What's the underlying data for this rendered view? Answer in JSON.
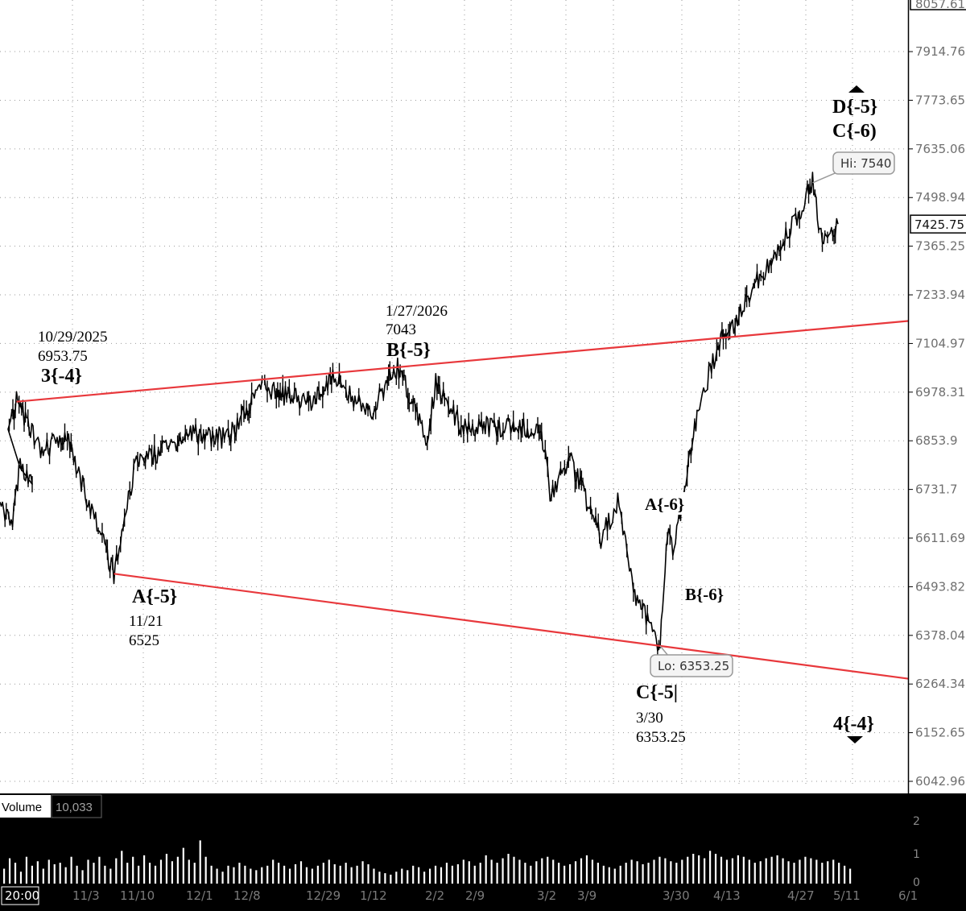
{
  "chart_data": {
    "type": "line",
    "title": "",
    "xlabel": "",
    "ylabel": "",
    "colors": {
      "price": "#000000",
      "trendline": "#e8383c",
      "grid": "#9a9a9a",
      "volume_bg": "#000000",
      "volume_bar": "#ffffff"
    },
    "price_axis": {
      "ticks": [
        "8057.61",
        "7914.76",
        "7773.65",
        "7635.06",
        "7498.94",
        "7365.25",
        "7233.94",
        "7104.97",
        "6978.31",
        "6853.9",
        "6731.7",
        "6611.69",
        "6493.82",
        "6378.04",
        "6264.34",
        "6152.65",
        "6042.96"
      ],
      "ylim": [
        6042.96,
        8057.61
      ],
      "scale": "log",
      "last_price": "7425.75"
    },
    "time_axis": {
      "ticks": [
        "20:00",
        "11/3",
        "11/10",
        "12/1",
        "12/8",
        "12/29",
        "1/12",
        "2/2",
        "2/9",
        "3/2",
        "3/9",
        "3/30",
        "4/13",
        "4/27",
        "5/11",
        "6/1"
      ]
    },
    "series": [
      {
        "x": [
          "10/27/2025",
          "10/29/2025",
          "11/4/2025",
          "11/10/2025",
          "11/13/2025",
          "11/21/2025",
          "11/26/2025",
          "12/10/2025",
          "12/18/2025",
          "12/26/2025",
          "1/6/2026",
          "1/12/2026",
          "1/20/2026",
          "1/27/2026",
          "2/3/2026",
          "2/5/2026",
          "2/11/2026",
          "2/20/2026",
          "3/2/2026",
          "3/4/2026",
          "3/9/2026",
          "3/16/2026",
          "3/20/2026",
          "3/24/2026",
          "3/30/2026",
          "4/1/2026",
          "4/2/2026",
          "4/6/2026",
          "4/8/2026",
          "4/13/2026",
          "4/17/2026",
          "4/21/2026",
          "4/24/2026",
          "4/29/2026",
          "5/1/2026",
          "5/5/2026",
          "5/7/2026",
          "5/11/2026"
        ],
        "values": [
          6880,
          6953.75,
          6820,
          6880,
          6760,
          6525,
          6790,
          6870,
          6860,
          6990,
          6950,
          7020,
          6920,
          7043,
          6860,
          7000,
          6890,
          6890,
          6880,
          6720,
          6800,
          6610,
          6700,
          6480,
          6353.25,
          6660,
          6570,
          6810,
          6930,
          7110,
          7160,
          7260,
          7300,
          7400,
          7440,
          7540,
          7390,
          7425.75
        ]
      }
    ],
    "trendlines": [
      {
        "from": {
          "x": "10/29/2025",
          "y": 6953.75
        },
        "to": {
          "x": "1/27/2026",
          "y": 7043
        }
      },
      {
        "from": {
          "x": "11/21/2025",
          "y": 6525
        },
        "to": {
          "x": "3/30/2026",
          "y": 6353.25
        }
      }
    ],
    "annotations": [
      {
        "wave": "3{-4}",
        "date": "10/29/2025",
        "price": "6953.75"
      },
      {
        "wave": "A{-5}",
        "date": "11/21",
        "price": "6525"
      },
      {
        "wave": "B{-5}",
        "date": "1/27/2026",
        "price": "7043"
      },
      {
        "wave": "C{-5|",
        "date": "3/30",
        "price": "6353.25"
      },
      {
        "wave": "A{-6}"
      },
      {
        "wave": "B{-6}"
      },
      {
        "wave": "D{-5}"
      },
      {
        "wave": "C{-6)"
      },
      {
        "wave": "4{-4}"
      }
    ],
    "callouts": {
      "high": "Hi: 7540",
      "low": "Lo: 6353.25"
    },
    "volume": {
      "label": "Volume",
      "value": "10,033",
      "ticks": [
        "2",
        "1",
        "0"
      ],
      "values": [
        0.5,
        0.85,
        0.7,
        0.4,
        0.9,
        0.6,
        0.75,
        0.5,
        0.8,
        0.65,
        0.7,
        0.55,
        0.9,
        0.6,
        0.45,
        0.8,
        0.7,
        0.9,
        0.6,
        0.5,
        0.85,
        1.1,
        0.7,
        0.9,
        0.6,
        0.95,
        0.7,
        0.6,
        0.8,
        1.0,
        0.75,
        0.9,
        1.2,
        0.8,
        0.7,
        1.45,
        0.9,
        0.6,
        0.5,
        0.4,
        0.6,
        0.55,
        0.7,
        0.6,
        0.5,
        0.45,
        0.55,
        0.6,
        0.8,
        0.7,
        0.6,
        0.5,
        0.65,
        0.75,
        0.55,
        0.5,
        0.6,
        0.7,
        0.8,
        0.65,
        0.6,
        0.7,
        0.55,
        0.6,
        0.75,
        0.65,
        0.5,
        0.4,
        0.35,
        0.3,
        0.4,
        0.5,
        0.45,
        0.6,
        0.55,
        0.4,
        0.5,
        0.6,
        0.55,
        0.7,
        0.6,
        0.65,
        0.8,
        0.75,
        0.6,
        0.7,
        0.95,
        0.8,
        0.7,
        0.85,
        1.0,
        0.9,
        0.8,
        0.7,
        0.6,
        0.75,
        0.85,
        0.9,
        0.8,
        0.7,
        0.6,
        0.65,
        0.75,
        0.85,
        0.95,
        0.8,
        0.7,
        0.6,
        0.55,
        0.5,
        0.6,
        0.7,
        0.8,
        0.75,
        0.65,
        0.7,
        0.8,
        0.9,
        0.85,
        0.75,
        0.7,
        0.8,
        0.9,
        1.0,
        0.95,
        0.85,
        1.1,
        1.0,
        0.9,
        0.8,
        0.85,
        0.95,
        0.9,
        0.8,
        0.7,
        0.75,
        0.85,
        0.9,
        0.95,
        0.85,
        0.75,
        0.7,
        0.8,
        0.9,
        0.85,
        0.8,
        0.7,
        0.75,
        0.8,
        0.7,
        0.6,
        0.5
      ]
    }
  }
}
